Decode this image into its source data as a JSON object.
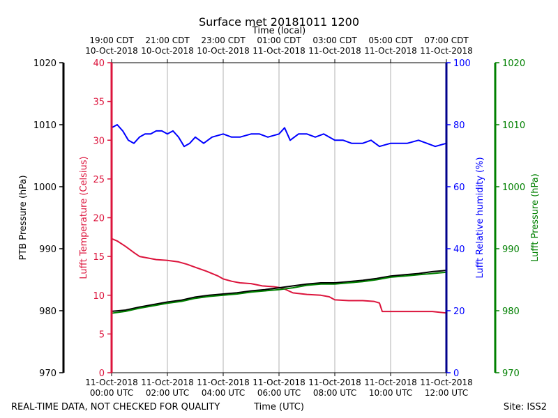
{
  "chart_data": {
    "type": "line",
    "title": "Surface met 20181011 1200",
    "top_axis_label": "Time (local)",
    "xlabel": "Time (UTC)",
    "footer_left": "REAL-TIME DATA, NOT CHECKED FOR QUALITY",
    "footer_right": "Site: ISS2",
    "x_range_hours_utc": [
      0,
      12
    ],
    "grid": "vertical",
    "x_ticks_utc": [
      {
        "h": 0,
        "date": "11-Oct-2018",
        "time": "00:00 UTC"
      },
      {
        "h": 2,
        "date": "11-Oct-2018",
        "time": "02:00 UTC"
      },
      {
        "h": 4,
        "date": "11-Oct-2018",
        "time": "04:00 UTC"
      },
      {
        "h": 6,
        "date": "11-Oct-2018",
        "time": "06:00 UTC"
      },
      {
        "h": 8,
        "date": "11-Oct-2018",
        "time": "08:00 UTC"
      },
      {
        "h": 10,
        "date": "11-Oct-2018",
        "time": "10:00 UTC"
      },
      {
        "h": 12,
        "date": "11-Oct-2018",
        "time": "12:00 UTC"
      }
    ],
    "x_ticks_local": [
      {
        "h": 0,
        "time": "19:00 CDT",
        "date": "10-Oct-2018"
      },
      {
        "h": 2,
        "time": "21:00 CDT",
        "date": "10-Oct-2018"
      },
      {
        "h": 4,
        "time": "23:00 CDT",
        "date": "10-Oct-2018"
      },
      {
        "h": 6,
        "time": "01:00 CDT",
        "date": "11-Oct-2018"
      },
      {
        "h": 8,
        "time": "03:00 CDT",
        "date": "11-Oct-2018"
      },
      {
        "h": 10,
        "time": "05:00 CDT",
        "date": "11-Oct-2018"
      },
      {
        "h": 12,
        "time": "07:00 CDT",
        "date": "11-Oct-2018"
      }
    ],
    "axes": {
      "ptb": {
        "label": "PTB Pressure (hPa)",
        "color": "#000000",
        "ylim": [
          970,
          1020
        ],
        "ticks": [
          970,
          980,
          990,
          1000,
          1010,
          1020
        ]
      },
      "temp": {
        "label": "Lufft Temperature (Celsius)",
        "color": "#dc143c",
        "ylim": [
          0,
          40
        ],
        "ticks": [
          0,
          5,
          10,
          15,
          20,
          25,
          30,
          35,
          40
        ]
      },
      "rh": {
        "label": "Lufft Relative humidity (%)",
        "color": "#0000ff",
        "ylim": [
          0,
          100
        ],
        "ticks": [
          0,
          20,
          40,
          60,
          80,
          100
        ]
      },
      "lufft_p": {
        "label": "Lufft Pressure (hPa)",
        "color": "#008000",
        "ylim": [
          970,
          1020
        ],
        "ticks": [
          970,
          980,
          990,
          1000,
          1010,
          1020
        ]
      }
    },
    "series": [
      {
        "axis": "temp",
        "color": "#dc143c",
        "x": [
          0,
          0.2,
          0.5,
          0.8,
          1.0,
          1.3,
          1.6,
          2.0,
          2.4,
          2.7,
          3.0,
          3.4,
          3.8,
          4.0,
          4.3,
          4.6,
          5.0,
          5.4,
          5.8,
          6.0,
          6.2,
          6.5,
          7.0,
          7.5,
          7.8,
          8.0,
          8.5,
          9.0,
          9.4,
          9.6,
          9.7,
          10.0,
          10.5,
          11.0,
          11.5,
          12.0
        ],
        "y": [
          17.3,
          17.0,
          16.3,
          15.5,
          15.0,
          14.8,
          14.6,
          14.5,
          14.3,
          14.0,
          13.6,
          13.1,
          12.5,
          12.1,
          11.8,
          11.6,
          11.5,
          11.2,
          11.1,
          11.0,
          10.8,
          10.3,
          10.1,
          10.0,
          9.8,
          9.4,
          9.3,
          9.3,
          9.2,
          9.0,
          7.9,
          7.9,
          7.9,
          7.9,
          7.9,
          7.7
        ]
      },
      {
        "axis": "rh",
        "color": "#0000ff",
        "x": [
          0,
          0.2,
          0.4,
          0.6,
          0.8,
          1.0,
          1.2,
          1.4,
          1.6,
          1.8,
          2.0,
          2.2,
          2.4,
          2.6,
          2.8,
          3.0,
          3.3,
          3.6,
          4.0,
          4.3,
          4.6,
          5.0,
          5.3,
          5.6,
          6.0,
          6.2,
          6.4,
          6.7,
          7.0,
          7.3,
          7.6,
          8.0,
          8.3,
          8.6,
          9.0,
          9.3,
          9.6,
          10.0,
          10.3,
          10.6,
          11.0,
          11.3,
          11.6,
          12.0
        ],
        "y": [
          79,
          80,
          78,
          75,
          74,
          76,
          77,
          77,
          78,
          78,
          77,
          78,
          76,
          73,
          74,
          76,
          74,
          76,
          77,
          76,
          76,
          77,
          77,
          76,
          77,
          79,
          75,
          77,
          77,
          76,
          77,
          75,
          75,
          74,
          74,
          75,
          73,
          74,
          74,
          74,
          75,
          74,
          73,
          74
        ]
      },
      {
        "axis": "ptb",
        "color": "#000000",
        "x": [
          0,
          0.5,
          1.0,
          1.5,
          2.0,
          2.5,
          3.0,
          3.5,
          4.0,
          4.5,
          5.0,
          5.5,
          6.0,
          6.5,
          7.0,
          7.5,
          8.0,
          8.5,
          9.0,
          9.5,
          10.0,
          10.5,
          11.0,
          11.5,
          12.0
        ],
        "y": [
          979.9,
          980.1,
          980.6,
          981.0,
          981.4,
          981.7,
          982.2,
          982.5,
          982.7,
          982.9,
          983.2,
          983.4,
          983.7,
          984.0,
          984.3,
          984.5,
          984.5,
          984.7,
          984.9,
          985.2,
          985.6,
          985.8,
          986.0,
          986.3,
          986.5
        ]
      },
      {
        "axis": "lufft_p",
        "color": "#008000",
        "x": [
          0,
          0.5,
          1.0,
          1.5,
          2.0,
          2.5,
          3.0,
          3.5,
          4.0,
          4.5,
          5.0,
          5.5,
          6.0,
          6.5,
          7.0,
          7.5,
          8.0,
          8.5,
          9.0,
          9.5,
          10.0,
          10.5,
          11.0,
          11.5,
          12.0
        ],
        "y": [
          979.6,
          979.9,
          980.4,
          980.8,
          981.2,
          981.5,
          982.0,
          982.3,
          982.5,
          982.7,
          983.0,
          983.2,
          983.4,
          983.7,
          984.1,
          984.3,
          984.3,
          984.5,
          984.7,
          985.0,
          985.4,
          985.6,
          985.8,
          986.0,
          986.2
        ]
      }
    ]
  }
}
